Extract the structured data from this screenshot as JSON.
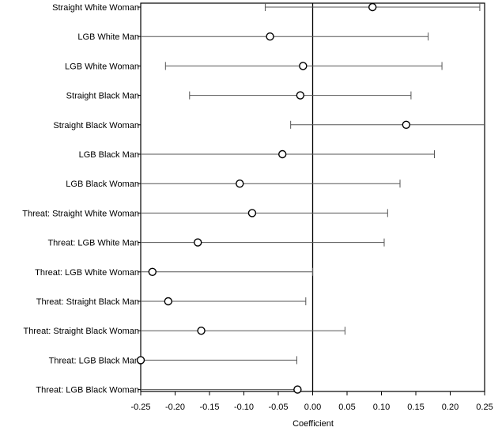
{
  "chart_data": {
    "type": "scatter",
    "subtype": "coefficient-plot",
    "title": "",
    "xlabel": "Coefficient",
    "ylabel": "",
    "xlim": [
      -0.25,
      0.25
    ],
    "xticks": [
      -0.25,
      -0.2,
      -0.15,
      -0.1,
      -0.05,
      0.0,
      0.05,
      0.1,
      0.15,
      0.2,
      0.25
    ],
    "xtick_labels": [
      "-0.25",
      "-0.20",
      "-0.15",
      "-0.10",
      "-0.05",
      "0.00",
      "0.05",
      "0.10",
      "0.15",
      "0.20",
      "0.25"
    ],
    "reference_line_x": 0.0,
    "grid": false,
    "legend": "none",
    "marker": "open-circle",
    "colors": {
      "line": "#555555",
      "marker": "#000000",
      "frame": "#000000"
    },
    "points": [
      {
        "label": "Straight White Woman",
        "estimate": 0.087,
        "ci_low": -0.069,
        "ci_high": 0.243
      },
      {
        "label": "LGB White Man",
        "estimate": -0.062,
        "ci_low": -0.25,
        "ci_high": 0.168
      },
      {
        "label": "LGB White Woman",
        "estimate": -0.014,
        "ci_low": -0.214,
        "ci_high": 0.188
      },
      {
        "label": "Straight Black Man",
        "estimate": -0.018,
        "ci_low": -0.179,
        "ci_high": 0.143
      },
      {
        "label": "Straight Black Woman",
        "estimate": 0.136,
        "ci_low": -0.032,
        "ci_high": 0.25
      },
      {
        "label": "LGB Black Man",
        "estimate": -0.044,
        "ci_low": -0.25,
        "ci_high": 0.177
      },
      {
        "label": "LGB Black Woman",
        "estimate": -0.106,
        "ci_low": -0.25,
        "ci_high": 0.127
      },
      {
        "label": "Threat: Straight White Woman",
        "estimate": -0.088,
        "ci_low": -0.25,
        "ci_high": 0.109
      },
      {
        "label": "Threat: LGB White Man",
        "estimate": -0.167,
        "ci_low": -0.25,
        "ci_high": 0.104
      },
      {
        "label": "Threat: LGB White Woman",
        "estimate": -0.233,
        "ci_low": -0.25,
        "ci_high": 0.0
      },
      {
        "label": "Threat: Straight Black Man",
        "estimate": -0.21,
        "ci_low": -0.25,
        "ci_high": -0.01
      },
      {
        "label": "Threat: Straight Black Woman",
        "estimate": -0.162,
        "ci_low": -0.25,
        "ci_high": 0.047
      },
      {
        "label": "Threat: LGB Black Man",
        "estimate": -0.25,
        "ci_low": -0.25,
        "ci_high": -0.023
      },
      {
        "label": "Threat: LGB Black Woman",
        "estimate": -0.022,
        "ci_low": -0.25,
        "ci_high": -0.022
      }
    ]
  }
}
